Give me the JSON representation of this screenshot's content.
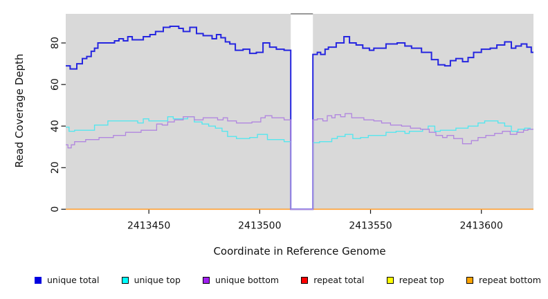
{
  "chart_data": {
    "type": "line",
    "subtype": "step-after",
    "title": "",
    "xlabel": "Coordinate in Reference Genome",
    "ylabel": "Read Coverage Depth",
    "xlim": [
      2413412.5,
      2413623.5
    ],
    "ylim": [
      0,
      94
    ],
    "x_ticks": [
      2413450,
      2413500,
      2413550,
      2413600
    ],
    "y_ticks": [
      0,
      20,
      40,
      60,
      80
    ],
    "grid": false,
    "plot_bg_color": "#D9D9D9",
    "axis_color": "#111111",
    "gap_region": {
      "x_start": 2413514,
      "x_end": 2413524,
      "fill": "#FFFFFF",
      "cap_color": "#999999"
    },
    "series": [
      {
        "name": "unique total",
        "color": "#2525E0",
        "width": 2,
        "points": [
          [
            2413412.5,
            69
          ],
          [
            2413414.5,
            67.5
          ],
          [
            2413417.5,
            70
          ],
          [
            2413420,
            72.5
          ],
          [
            2413422,
            73.5
          ],
          [
            2413424,
            76
          ],
          [
            2413425.5,
            77.5
          ],
          [
            2413427,
            80
          ],
          [
            2413434.5,
            81
          ],
          [
            2413436.5,
            82
          ],
          [
            2413438.5,
            81
          ],
          [
            2413440.5,
            83
          ],
          [
            2413442.5,
            81.5
          ],
          [
            2413447.5,
            83
          ],
          [
            2413450.5,
            84
          ],
          [
            2413453,
            85.5
          ],
          [
            2413456.5,
            87.5
          ],
          [
            2413459.5,
            88
          ],
          [
            2413463.5,
            87
          ],
          [
            2413465.5,
            85.5
          ],
          [
            2413468.5,
            87.5
          ],
          [
            2413471.5,
            84.5
          ],
          [
            2413474.5,
            83.5
          ],
          [
            2413478.5,
            82
          ],
          [
            2413480.5,
            84
          ],
          [
            2413482.5,
            82.5
          ],
          [
            2413484.5,
            80.5
          ],
          [
            2413486.5,
            79.5
          ],
          [
            2413489,
            76.5
          ],
          [
            2413492.5,
            77
          ],
          [
            2413495.5,
            75
          ],
          [
            2413498.5,
            75.5
          ],
          [
            2413501.5,
            80
          ],
          [
            2413504.5,
            78
          ],
          [
            2413507.5,
            77
          ],
          [
            2413511,
            76.5
          ],
          [
            2413514,
            0
          ],
          [
            2413524,
            74.5
          ],
          [
            2413526,
            75.5
          ],
          [
            2413527.5,
            74.5
          ],
          [
            2413529.5,
            77
          ],
          [
            2413531,
            78
          ],
          [
            2413534.5,
            80
          ],
          [
            2413538,
            83
          ],
          [
            2413540.5,
            80
          ],
          [
            2413543.5,
            79
          ],
          [
            2413546.5,
            77.5
          ],
          [
            2413549.5,
            76.5
          ],
          [
            2413551.5,
            77.5
          ],
          [
            2413557,
            79.5
          ],
          [
            2413562,
            80
          ],
          [
            2413565.5,
            78.5
          ],
          [
            2413568.5,
            77.5
          ],
          [
            2413573,
            75.5
          ],
          [
            2413577.5,
            72
          ],
          [
            2413580.5,
            69.5
          ],
          [
            2413583.5,
            69
          ],
          [
            2413586,
            71.5
          ],
          [
            2413588.5,
            72.5
          ],
          [
            2413591.5,
            71
          ],
          [
            2413594,
            73
          ],
          [
            2413596.5,
            75.5
          ],
          [
            2413600,
            77
          ],
          [
            2413604,
            77.5
          ],
          [
            2413607,
            79
          ],
          [
            2413610.5,
            80.5
          ],
          [
            2413613.5,
            77.5
          ],
          [
            2413615.5,
            78.5
          ],
          [
            2413618,
            79.5
          ],
          [
            2413620.5,
            78
          ],
          [
            2413622.5,
            75.5
          ]
        ]
      },
      {
        "name": "unique top",
        "color": "#55E6EE",
        "width": 1.4,
        "points": [
          [
            2413412.5,
            39.5
          ],
          [
            2413414,
            37.5
          ],
          [
            2413416.5,
            38
          ],
          [
            2413425.5,
            40.5
          ],
          [
            2413431.5,
            42.5
          ],
          [
            2413445,
            41.5
          ],
          [
            2413447.5,
            43.5
          ],
          [
            2413450,
            42.5
          ],
          [
            2413458.5,
            44.5
          ],
          [
            2413461,
            43.5
          ],
          [
            2413467.5,
            44.5
          ],
          [
            2413470.5,
            42
          ],
          [
            2413474,
            41
          ],
          [
            2413477,
            40
          ],
          [
            2413480,
            39
          ],
          [
            2413483,
            37.5
          ],
          [
            2413485.5,
            35
          ],
          [
            2413489.5,
            34
          ],
          [
            2413495.5,
            34.5
          ],
          [
            2413499,
            36
          ],
          [
            2413503.5,
            33.5
          ],
          [
            2413511,
            32.5
          ],
          [
            2413514,
            0
          ],
          [
            2413524,
            32
          ],
          [
            2413527,
            32.5
          ],
          [
            2413532.5,
            34
          ],
          [
            2413535,
            35
          ],
          [
            2413538.5,
            36
          ],
          [
            2413542,
            34
          ],
          [
            2413545.5,
            34.5
          ],
          [
            2413549,
            35.5
          ],
          [
            2413557,
            37
          ],
          [
            2413561.5,
            37.5
          ],
          [
            2413565.5,
            36.5
          ],
          [
            2413567.5,
            37.5
          ],
          [
            2413573.5,
            38.5
          ],
          [
            2413576,
            40
          ],
          [
            2413579,
            37.5
          ],
          [
            2413581.5,
            38
          ],
          [
            2413588.5,
            39
          ],
          [
            2413594,
            40
          ],
          [
            2413598.5,
            41.5
          ],
          [
            2413601.5,
            42.5
          ],
          [
            2413607.5,
            41.5
          ],
          [
            2413610.5,
            40
          ],
          [
            2413613.5,
            37.5
          ],
          [
            2413616.5,
            38.5
          ],
          [
            2413619.5,
            39
          ],
          [
            2413622,
            38.5
          ]
        ]
      },
      {
        "name": "unique bottom",
        "color": "#B186DF",
        "width": 1.3,
        "points": [
          [
            2413412.5,
            31
          ],
          [
            2413413.5,
            29.5
          ],
          [
            2413415,
            31
          ],
          [
            2413416.5,
            32.5
          ],
          [
            2413421.5,
            33.5
          ],
          [
            2413427.5,
            34.5
          ],
          [
            2413434,
            35.5
          ],
          [
            2413439.5,
            37
          ],
          [
            2413446.5,
            38
          ],
          [
            2413453.5,
            41
          ],
          [
            2413456,
            40.5
          ],
          [
            2413458.5,
            42
          ],
          [
            2413461.5,
            43
          ],
          [
            2413465.5,
            44.5
          ],
          [
            2413470.5,
            43
          ],
          [
            2413474.5,
            44
          ],
          [
            2413481,
            43
          ],
          [
            2413483.5,
            44
          ],
          [
            2413485.5,
            42.5
          ],
          [
            2413489.5,
            41.5
          ],
          [
            2413496.5,
            42
          ],
          [
            2413500.5,
            44
          ],
          [
            2413502.5,
            45
          ],
          [
            2413505.5,
            44
          ],
          [
            2413511,
            43
          ],
          [
            2413514,
            0
          ],
          [
            2413524,
            43
          ],
          [
            2413526,
            43.5
          ],
          [
            2413528.5,
            42.5
          ],
          [
            2413530.5,
            45
          ],
          [
            2413532.5,
            44
          ],
          [
            2413534,
            45.5
          ],
          [
            2413536.5,
            44.5
          ],
          [
            2413538.5,
            46
          ],
          [
            2413541.5,
            44
          ],
          [
            2413547,
            43
          ],
          [
            2413551.5,
            42.5
          ],
          [
            2413555,
            41.5
          ],
          [
            2413559,
            40.5
          ],
          [
            2413564,
            40
          ],
          [
            2413568,
            39
          ],
          [
            2413572.5,
            38.5
          ],
          [
            2413576.5,
            37
          ],
          [
            2413579.5,
            35.5
          ],
          [
            2413582.5,
            34.5
          ],
          [
            2413584.5,
            35.5
          ],
          [
            2413587.5,
            34
          ],
          [
            2413591.5,
            31.5
          ],
          [
            2413595.5,
            33
          ],
          [
            2413598.5,
            34.5
          ],
          [
            2413602,
            35.5
          ],
          [
            2413606,
            36.5
          ],
          [
            2413609.5,
            37.5
          ],
          [
            2413613,
            36
          ],
          [
            2413616,
            37
          ],
          [
            2413619,
            38
          ],
          [
            2413621,
            38.5
          ]
        ]
      },
      {
        "name": "repeat total",
        "color": "#DD0000",
        "width": 1.2,
        "points": [
          [
            2413412.5,
            0
          ]
        ]
      },
      {
        "name": "repeat top",
        "color": "#FFFF00",
        "width": 1.2,
        "points": [
          [
            2413412.5,
            0
          ]
        ]
      },
      {
        "name": "repeat bottom",
        "color": "#FFA033",
        "width": 1.6,
        "points": [
          [
            2413412.5,
            0
          ]
        ]
      }
    ]
  },
  "legend": {
    "items": [
      {
        "label": "unique total",
        "color": "#0000E0",
        "border": "#0000E0"
      },
      {
        "label": "unique top",
        "color": "#00FFFF",
        "border": "#000000"
      },
      {
        "label": "unique bottom",
        "color": "#A020F0",
        "border": "#000000"
      },
      {
        "label": "repeat total",
        "color": "#FF0000",
        "border": "#000000"
      },
      {
        "label": "repeat top",
        "color": "#FFFF00",
        "border": "#000000"
      },
      {
        "label": "repeat bottom",
        "color": "#FFA500",
        "border": "#000000"
      }
    ]
  }
}
